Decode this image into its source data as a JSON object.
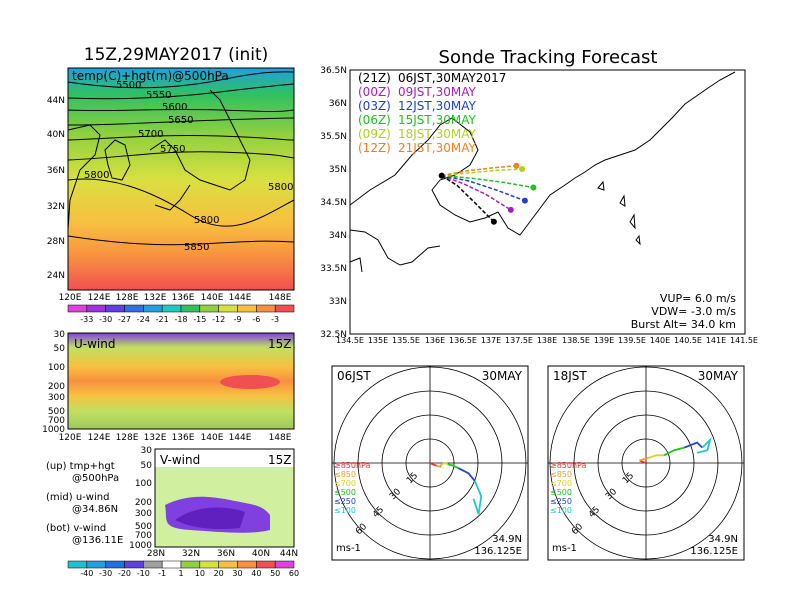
{
  "left_panel": {
    "title": "15Z,29MAY2017 (init)",
    "map_label": "temp(C)+hgt(m)@500hPa",
    "lat_ticks": [
      "44N",
      "40N",
      "36N",
      "32N",
      "28N",
      "24N"
    ],
    "lon_ticks": [
      "120E",
      "124E",
      "128E",
      "132E",
      "136E",
      "140E",
      "144E",
      "148E"
    ],
    "contour_labels": [
      "5500",
      "5550",
      "5600",
      "5650",
      "5700",
      "5750",
      "5800",
      "5800",
      "5800",
      "5850"
    ],
    "temp_colorbar": {
      "labels": [
        "-33",
        "-30",
        "-27",
        "-24",
        "-21",
        "-18",
        "-15",
        "-12",
        "-9",
        "-6",
        "-3"
      ],
      "colors": [
        "#e040e0",
        "#a030e0",
        "#6040e0",
        "#3070e0",
        "#20a0e0",
        "#20c8c0",
        "#30c060",
        "#90d040",
        "#d8e040",
        "#f8c040",
        "#f89040",
        "#f05050"
      ]
    }
  },
  "uwind_panel": {
    "label": "U-wind",
    "time": "15Z",
    "y_ticks": [
      "30",
      "50",
      "100",
      "200",
      "300",
      "500",
      "700",
      "1000"
    ],
    "x_ticks": [
      "120E",
      "124E",
      "128E",
      "132E",
      "136E",
      "140E",
      "144E",
      "148E"
    ]
  },
  "vwind_panel": {
    "label": "V-wind",
    "time": "15Z",
    "y_ticks": [
      "30",
      "50",
      "100",
      "200",
      "300",
      "500",
      "700",
      "1000"
    ],
    "x_ticks": [
      "28N",
      "32N",
      "36N",
      "40N",
      "44N"
    ],
    "colorbar": {
      "labels": [
        "-40",
        "-30",
        "-20",
        "-10",
        "-1",
        "1",
        "10",
        "20",
        "30",
        "40",
        "50",
        "60"
      ],
      "colors": [
        "#20c0d0",
        "#20a0e0",
        "#2070e0",
        "#6040e0",
        "#a0a0a0",
        "#ffffff",
        "#90d040",
        "#d8e040",
        "#f8c040",
        "#f89040",
        "#f05050",
        "#e040e0"
      ]
    }
  },
  "legend_notes": [
    {
      "line1": "(up) tmp+hgt",
      "line2": "@500hPa"
    },
    {
      "line1": "(mid) u-wind",
      "line2": "@34.86N"
    },
    {
      "line1": "(bot) v-wind",
      "line2": "@136.11E"
    }
  ],
  "forecast": {
    "title": "Sonde Tracking Forecast",
    "schedule": [
      {
        "utc": "(21Z)",
        "jst": "06JST,30MAY2017",
        "color": "#000000"
      },
      {
        "utc": "(00Z)",
        "jst": "09JST,30MAY",
        "color": "#a020c0"
      },
      {
        "utc": "(03Z)",
        "jst": "12JST,30MAY",
        "color": "#2040d0"
      },
      {
        "utc": "(06Z)",
        "jst": "15JST,30MAY",
        "color": "#20c020"
      },
      {
        "utc": "(09Z)",
        "jst": "18JST,30MAY",
        "color": "#b0d020"
      },
      {
        "utc": "(12Z)",
        "jst": "21JST,30MAY",
        "color": "#f08020"
      }
    ],
    "params": [
      "VUP= 6.0 m/s",
      "VDW= -3.0 m/s",
      "Burst Alt= 34.0 km"
    ],
    "lat_ticks": [
      "36.5N",
      "36N",
      "35.5N",
      "35N",
      "34.5N",
      "34N",
      "33.5N",
      "33N",
      "32.5N"
    ],
    "lon_ticks": [
      "134.5E",
      "135E",
      "135.5E",
      "136E",
      "136.5E",
      "137E",
      "137.5E",
      "138E",
      "138.5E",
      "139E",
      "139.5E",
      "140E",
      "140.5E",
      "141E",
      "141.5E"
    ]
  },
  "hodograph_left": {
    "time_label": "06JST",
    "date_label": "30MAY",
    "ring_labels": [
      "15",
      "30",
      "45",
      "60"
    ],
    "pressure_legend": [
      {
        "text": "≥850hPa",
        "color": "#f03030"
      },
      {
        "text": "≤850",
        "color": "#f0a030"
      },
      {
        "text": "≤700",
        "color": "#e0d020"
      },
      {
        "text": "≤500",
        "color": "#20c020"
      },
      {
        "text": "≤250",
        "color": "#2040d0"
      },
      {
        "text": "≤100",
        "color": "#20c8c8"
      }
    ],
    "unit": "ms-1",
    "lat": "34.9N",
    "lon": "136.125E"
  },
  "hodograph_right": {
    "time_label": "18JST",
    "date_label": "30MAY",
    "ring_labels": [
      "15",
      "30",
      "45",
      "60"
    ],
    "pressure_legend": [
      {
        "text": "≥850hPa",
        "color": "#f03030"
      },
      {
        "text": "≤850",
        "color": "#f0a030"
      },
      {
        "text": "≤700",
        "color": "#e0d020"
      },
      {
        "text": "≤500",
        "color": "#20c020"
      },
      {
        "text": "≤250",
        "color": "#2040d0"
      },
      {
        "text": "≤100",
        "color": "#20c8c8"
      }
    ],
    "unit": "ms-1",
    "lat": "34.9N",
    "lon": "136.125E"
  },
  "chart_data": [
    {
      "type": "line",
      "panel": "Sonde Tracking Forecast",
      "xlim": [
        134.5,
        141.5
      ],
      "ylim": [
        32.5,
        36.5
      ],
      "xlabel": "",
      "ylabel": "",
      "launch": {
        "lon": 136.125,
        "lat": 34.9
      },
      "series": [
        {
          "name": "(21Z) 06JST,30MAY2017",
          "color": "#000000",
          "lon": [
            136.125,
            136.4,
            136.7,
            137.05
          ],
          "lat": [
            34.9,
            34.75,
            34.5,
            34.2
          ]
        },
        {
          "name": "(00Z) 09JST,30MAY",
          "color": "#a020c0",
          "lon": [
            136.125,
            136.5,
            136.9,
            137.35
          ],
          "lat": [
            34.9,
            34.78,
            34.62,
            34.38
          ]
        },
        {
          "name": "(03Z) 12JST,30MAY",
          "color": "#2040d0",
          "lon": [
            136.125,
            136.6,
            137.1,
            137.6
          ],
          "lat": [
            34.9,
            34.82,
            34.68,
            34.52
          ]
        },
        {
          "name": "(06Z) 15JST,30MAY",
          "color": "#20c020",
          "lon": [
            136.125,
            136.65,
            137.2,
            137.75
          ],
          "lat": [
            34.9,
            34.86,
            34.8,
            34.72
          ]
        },
        {
          "name": "(09Z) 18JST,30MAY",
          "color": "#b0d020",
          "lon": [
            136.125,
            136.6,
            137.1,
            137.55
          ],
          "lat": [
            34.9,
            34.94,
            34.98,
            35.0
          ]
        },
        {
          "name": "(12Z) 21JST,30MAY",
          "color": "#f08020",
          "lon": [
            136.125,
            136.55,
            137.05,
            137.45
          ],
          "lat": [
            34.9,
            34.97,
            35.02,
            35.05
          ]
        }
      ]
    },
    {
      "type": "line",
      "panel": "hodograph 06JST 30MAY",
      "xlim": [
        -75,
        75
      ],
      "ylim": [
        -75,
        75
      ],
      "series": [
        {
          "name": "≥850hPa",
          "color": "#f03030",
          "u": [
            0,
            2,
            5
          ],
          "v": [
            0,
            -1,
            -2
          ]
        },
        {
          "name": "≤850",
          "color": "#f0a030",
          "u": [
            5,
            8,
            9
          ],
          "v": [
            -2,
            -3,
            -1
          ]
        },
        {
          "name": "≤700",
          "color": "#e0d020",
          "u": [
            9,
            12,
            14
          ],
          "v": [
            -1,
            0,
            -1
          ]
        },
        {
          "name": "≤500",
          "color": "#20c020",
          "u": [
            14,
            18,
            22
          ],
          "v": [
            -1,
            -2,
            -4
          ]
        },
        {
          "name": "≤250",
          "color": "#2040d0",
          "u": [
            22,
            30,
            35
          ],
          "v": [
            -4,
            -8,
            -14
          ]
        },
        {
          "name": "≤100",
          "color": "#20c8c8",
          "u": [
            35,
            40,
            38,
            34
          ],
          "v": [
            -14,
            -26,
            -40,
            -28
          ]
        }
      ]
    },
    {
      "type": "line",
      "panel": "hodograph 18JST 30MAY",
      "xlim": [
        -75,
        75
      ],
      "ylim": [
        -75,
        75
      ],
      "series": [
        {
          "name": "≥850hPa",
          "color": "#f03030",
          "u": [
            0,
            -3,
            -5
          ],
          "v": [
            0,
            1,
            2
          ]
        },
        {
          "name": "≤850",
          "color": "#f0a030",
          "u": [
            -5,
            -2,
            2
          ],
          "v": [
            2,
            3,
            4
          ]
        },
        {
          "name": "≤700",
          "color": "#e0d020",
          "u": [
            2,
            8,
            14
          ],
          "v": [
            4,
            6,
            6
          ]
        },
        {
          "name": "≤500",
          "color": "#20c020",
          "u": [
            14,
            22,
            30
          ],
          "v": [
            6,
            10,
            12
          ]
        },
        {
          "name": "≤250",
          "color": "#2040d0",
          "u": [
            30,
            40,
            44
          ],
          "v": [
            12,
            16,
            12
          ]
        },
        {
          "name": "≤100",
          "color": "#20c8c8",
          "u": [
            44,
            50,
            48,
            40
          ],
          "v": [
            12,
            18,
            10,
            8
          ]
        }
      ]
    }
  ]
}
